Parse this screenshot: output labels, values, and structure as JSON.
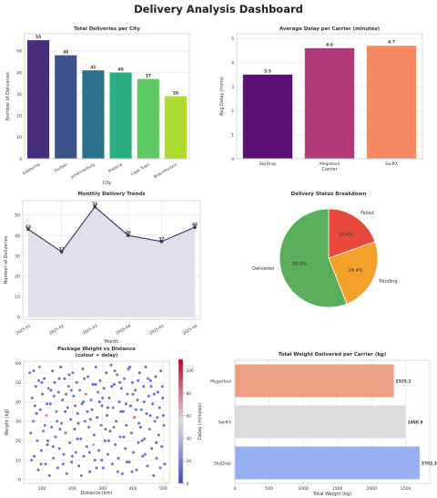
{
  "dashboard": {
    "title": "Delivery Analysis Dashboard"
  },
  "chart_data": [
    {
      "id": "city",
      "type": "bar",
      "title": "Total Deliveries per City",
      "xlabel": "City",
      "ylabel": "Number of Deliveries",
      "categories": [
        "Gqeberha",
        "Durban",
        "Johannesburg",
        "Pretoria",
        "Cape Town",
        "Bloemfontein"
      ],
      "values": [
        55,
        48,
        41,
        40,
        37,
        29
      ],
      "ylim": [
        0,
        58
      ],
      "yticks": [
        0,
        10,
        20,
        30,
        40,
        50
      ],
      "colors": [
        "#472d7b",
        "#3b528b",
        "#2c728e",
        "#28ae80",
        "#5ec962",
        "#addc30"
      ],
      "grid": true
    },
    {
      "id": "delay",
      "type": "bar",
      "title": "Average Delay per Carrier (minutes)",
      "xlabel": "Carrier",
      "ylabel": "Avg Delay (mins)",
      "categories": [
        "SkyDrop",
        "MegaHaul",
        "SwiftX"
      ],
      "values": [
        3.5,
        4.6,
        4.7
      ],
      "ylim": [
        0,
        5.2
      ],
      "yticks": [
        0,
        1,
        2,
        3,
        4,
        5
      ],
      "colors": [
        "#5b0f75",
        "#b03a78",
        "#f58860"
      ],
      "grid": true
    },
    {
      "id": "monthly",
      "type": "line",
      "title": "Monthly Delivery Trends",
      "xlabel": "Month",
      "ylabel": "Number of Deliveries",
      "categories": [
        "2025-01",
        "2025-02",
        "2025-03",
        "2025-04",
        "2025-05",
        "2025-06"
      ],
      "values": [
        43,
        32,
        54,
        40,
        37,
        44
      ],
      "ylim": [
        -1,
        57
      ],
      "yticks": [
        0,
        10,
        20,
        30,
        40,
        50
      ],
      "line_color": "#2a3a5c",
      "fill_color": "#dde1ea",
      "grid": true
    },
    {
      "id": "status",
      "type": "pie",
      "title": "Delivery Status Breakdown",
      "slices": [
        {
          "label": "Failed",
          "value": 19.6,
          "display": "19.6%",
          "color": "#e8493d"
        },
        {
          "label": "Pending",
          "value": 24.4,
          "display": "24.4%",
          "color": "#f5a02a"
        },
        {
          "label": "Delivered",
          "value": 56.0,
          "display": "56.0%",
          "color": "#5aad5a"
        }
      ],
      "start_angle_deg": 90
    },
    {
      "id": "scatter",
      "type": "scatter",
      "title": "Package Weight vs Distance",
      "subtitle": "(colour = delay)",
      "xlabel": "Distance (km)",
      "ylabel": "Weight (kg)",
      "xlim": [
        40,
        520
      ],
      "ylim": [
        -2,
        61
      ],
      "xticks": [
        100,
        200,
        300,
        400,
        500
      ],
      "yticks": [
        0,
        10,
        20,
        30,
        40,
        50,
        60
      ],
      "colorbar": {
        "label": "Delay (minutes)",
        "range": [
          0,
          110
        ],
        "ticks": [
          0,
          20,
          40,
          60,
          80,
          100
        ]
      },
      "points": [
        [
          60,
          55,
          8
        ],
        [
          68,
          42,
          4
        ],
        [
          72,
          30,
          12
        ],
        [
          75,
          12,
          3
        ],
        [
          80,
          48,
          6
        ],
        [
          85,
          20,
          9
        ],
        [
          88,
          5,
          2
        ],
        [
          92,
          58,
          15
        ],
        [
          95,
          36,
          7
        ],
        [
          98,
          15,
          5
        ],
        [
          102,
          44,
          3
        ],
        [
          105,
          25,
          10
        ],
        [
          108,
          52,
          4
        ],
        [
          112,
          8,
          6
        ],
        [
          115,
          33,
          82
        ],
        [
          118,
          18,
          3
        ],
        [
          122,
          47,
          9
        ],
        [
          125,
          2,
          5
        ],
        [
          128,
          39,
          2
        ],
        [
          132,
          27,
          7
        ],
        [
          135,
          56,
          4
        ],
        [
          138,
          11,
          8
        ],
        [
          142,
          50,
          3
        ],
        [
          145,
          22,
          6
        ],
        [
          148,
          35,
          11
        ],
        [
          152,
          6,
          4
        ],
        [
          155,
          45,
          5
        ],
        [
          158,
          16,
          9
        ],
        [
          162,
          58,
          3
        ],
        [
          165,
          29,
          7
        ],
        [
          168,
          41,
          2
        ],
        [
          172,
          13,
          6
        ],
        [
          175,
          52,
          4
        ],
        [
          178,
          24,
          8
        ],
        [
          182,
          3,
          5
        ],
        [
          185,
          37,
          3
        ],
        [
          188,
          48,
          10
        ],
        [
          192,
          19,
          4
        ],
        [
          195,
          31,
          6
        ],
        [
          198,
          9,
          3
        ],
        [
          202,
          55,
          7
        ],
        [
          205,
          43,
          5
        ],
        [
          208,
          26,
          2
        ],
        [
          212,
          14,
          8
        ],
        [
          215,
          50,
          4
        ],
        [
          218,
          34,
          6
        ],
        [
          222,
          7,
          3
        ],
        [
          225,
          46,
          9
        ],
        [
          228,
          21,
          5
        ],
        [
          232,
          39,
          4
        ],
        [
          235,
          57,
          7
        ],
        [
          238,
          12,
          3
        ],
        [
          242,
          30,
          6
        ],
        [
          245,
          44,
          85
        ],
        [
          248,
          17,
          5
        ],
        [
          252,
          53,
          4
        ],
        [
          255,
          27,
          8
        ],
        [
          258,
          4,
          3
        ],
        [
          262,
          41,
          6
        ],
        [
          265,
          36,
          5
        ],
        [
          268,
          49,
          2
        ],
        [
          272,
          23,
          7
        ],
        [
          275,
          10,
          4
        ],
        [
          278,
          58,
          6
        ],
        [
          282,
          32,
          3
        ],
        [
          285,
          45,
          9
        ],
        [
          288,
          15,
          5
        ],
        [
          292,
          51,
          4
        ],
        [
          295,
          28,
          7
        ],
        [
          298,
          38,
          3
        ],
        [
          302,
          6,
          6
        ],
        [
          305,
          47,
          5
        ],
        [
          308,
          20,
          8
        ],
        [
          312,
          55,
          4
        ],
        [
          315,
          33,
          2
        ],
        [
          318,
          13,
          7
        ],
        [
          322,
          42,
          5
        ],
        [
          325,
          25,
          3
        ],
        [
          328,
          59,
          6
        ],
        [
          332,
          8,
          4
        ],
        [
          335,
          37,
          9
        ],
        [
          338,
          49,
          3
        ],
        [
          342,
          18,
          6
        ],
        [
          345,
          30,
          5
        ],
        [
          348,
          54,
          7
        ],
        [
          352,
          11,
          4
        ],
        [
          355,
          40,
          3
        ],
        [
          358,
          22,
          8
        ],
        [
          362,
          47,
          5
        ],
        [
          365,
          3,
          6
        ],
        [
          368,
          35,
          4
        ],
        [
          372,
          52,
          7
        ],
        [
          375,
          16,
          3
        ],
        [
          378,
          28,
          5
        ],
        [
          382,
          44,
          9
        ],
        [
          385,
          57,
          4
        ],
        [
          388,
          9,
          6
        ],
        [
          392,
          38,
          3
        ],
        [
          395,
          24,
          7
        ],
        [
          398,
          50,
          5
        ],
        [
          402,
          14,
          4
        ],
        [
          405,
          32,
          88
        ],
        [
          408,
          46,
          3
        ],
        [
          412,
          5,
          6
        ],
        [
          415,
          41,
          5
        ],
        [
          418,
          19,
          7
        ],
        [
          422,
          55,
          4
        ],
        [
          425,
          27,
          3
        ],
        [
          428,
          36,
          8
        ],
        [
          432,
          12,
          5
        ],
        [
          435,
          48,
          6
        ],
        [
          438,
          21,
          4
        ],
        [
          442,
          58,
          7
        ],
        [
          445,
          34,
          3
        ],
        [
          448,
          7,
          5
        ],
        [
          452,
          43,
          4
        ],
        [
          455,
          26,
          9
        ],
        [
          458,
          51,
          3
        ],
        [
          462,
          16,
          6
        ],
        [
          465,
          39,
          5
        ],
        [
          468,
          2,
          4
        ],
        [
          472,
          30,
          7
        ],
        [
          475,
          53,
          3
        ],
        [
          478,
          11,
          6
        ],
        [
          482,
          45,
          5
        ],
        [
          485,
          23,
          8
        ],
        [
          488,
          37,
          4
        ],
        [
          492,
          56,
          3
        ],
        [
          495,
          17,
          6
        ],
        [
          498,
          42,
          5
        ],
        [
          502,
          28,
          7
        ],
        [
          505,
          8,
          4
        ],
        [
          63,
          24,
          5
        ],
        [
          77,
          38,
          6
        ],
        [
          90,
          51,
          3
        ],
        [
          110,
          28,
          8
        ],
        [
          130,
          46,
          4
        ],
        [
          150,
          30,
          7
        ],
        [
          170,
          8,
          5
        ],
        [
          190,
          54,
          3
        ],
        [
          210,
          38,
          6
        ],
        [
          230,
          2,
          9
        ],
        [
          250,
          35,
          4
        ],
        [
          270,
          18,
          75
        ],
        [
          290,
          40,
          3
        ],
        [
          310,
          26,
          6
        ],
        [
          330,
          48,
          5
        ],
        [
          350,
          4,
          7
        ],
        [
          370,
          22,
          4
        ],
        [
          390,
          58,
          3
        ],
        [
          410,
          36,
          6
        ],
        [
          430,
          20,
          5
        ],
        [
          450,
          52,
          8
        ],
        [
          470,
          44,
          4
        ],
        [
          490,
          6,
          6
        ],
        [
          500,
          33,
          3
        ],
        [
          66,
          10,
          7
        ],
        [
          82,
          34,
          4
        ],
        [
          100,
          50,
          6
        ],
        [
          120,
          20,
          3
        ],
        [
          140,
          43,
          9
        ],
        [
          160,
          26,
          5
        ],
        [
          180,
          44,
          4
        ],
        [
          200,
          12,
          7
        ],
        [
          220,
          29,
          3
        ],
        [
          240,
          52,
          6
        ],
        [
          260,
          31,
          5
        ],
        [
          280,
          6,
          4
        ],
        [
          300,
          42,
          8
        ],
        [
          320,
          20,
          3
        ],
        [
          340,
          56,
          6
        ],
        [
          360,
          35,
          4
        ],
        [
          380,
          9,
          7
        ],
        [
          400,
          44,
          5
        ],
        [
          420,
          29,
          3
        ],
        [
          440,
          13,
          6
        ],
        [
          460,
          48,
          4
        ],
        [
          480,
          32,
          9
        ],
        [
          73,
          56,
          3
        ],
        [
          97,
          8,
          6
        ],
        [
          117,
          39,
          4
        ],
        [
          137,
          17,
          7
        ],
        [
          157,
          52,
          5
        ],
        [
          177,
          35,
          3
        ],
        [
          197,
          46,
          8
        ],
        [
          217,
          21,
          4
        ],
        [
          237,
          40,
          6
        ],
        [
          257,
          14,
          5
        ],
        [
          277,
          49,
          3
        ],
        [
          297,
          10,
          7
        ],
        [
          317,
          37,
          4
        ],
        [
          337,
          27,
          6
        ],
        [
          357,
          50,
          5
        ],
        [
          377,
          39,
          3
        ],
        [
          397,
          4,
          8
        ],
        [
          417,
          51,
          4
        ],
        [
          437,
          40,
          6
        ],
        [
          457,
          33,
          5
        ],
        [
          477,
          19,
          3
        ],
        [
          497,
          48,
          7
        ]
      ]
    },
    {
      "id": "weight",
      "type": "bar",
      "orientation": "horizontal",
      "title": "Total Weight Delivered per Carrier (kg)",
      "xlabel": "Total Weight (kg)",
      "categories": [
        "MegaHaul",
        "SwiftX",
        "SkyDrop"
      ],
      "values": [
        2325.2,
        2498.9,
        2702.3
      ],
      "value_labels": [
        "2325.2",
        "2498.9",
        "2702.3"
      ],
      "xlim": [
        0,
        2850
      ],
      "xticks": [
        0,
        500,
        1000,
        1500,
        2000,
        2500
      ],
      "colors": [
        "#ec9f82",
        "#dcdcdc",
        "#98b0f2"
      ],
      "grid": true
    }
  ]
}
